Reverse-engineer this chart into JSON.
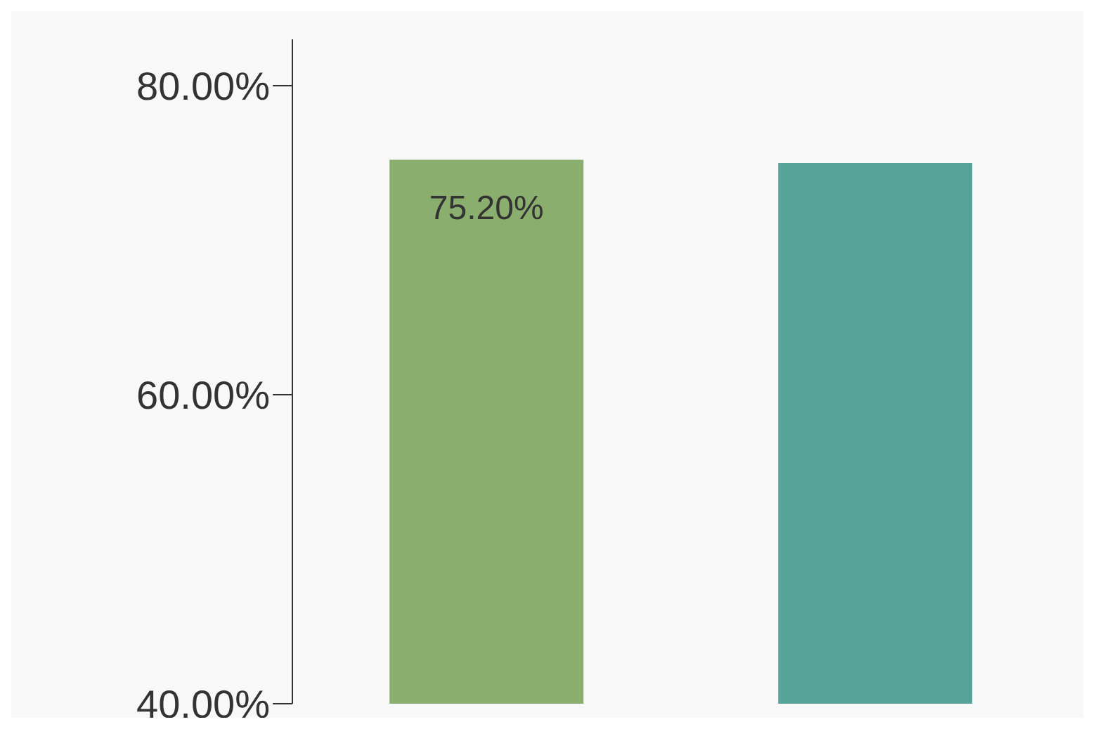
{
  "chart_data": {
    "type": "bar",
    "categories": [
      null,
      null
    ],
    "values": [
      75.2,
      75
    ],
    "colors": [
      "#8aae6e",
      "#56a39a"
    ],
    "value_labels": [
      "75.20%",
      null
    ],
    "ylim": [
      40,
      83
    ],
    "yticks": [
      {
        "value": 40,
        "label": "40.00%"
      },
      {
        "value": 60,
        "label": "60.00%"
      },
      {
        "value": 80,
        "label": "80.00%"
      }
    ],
    "grid": false,
    "legend": false
  }
}
